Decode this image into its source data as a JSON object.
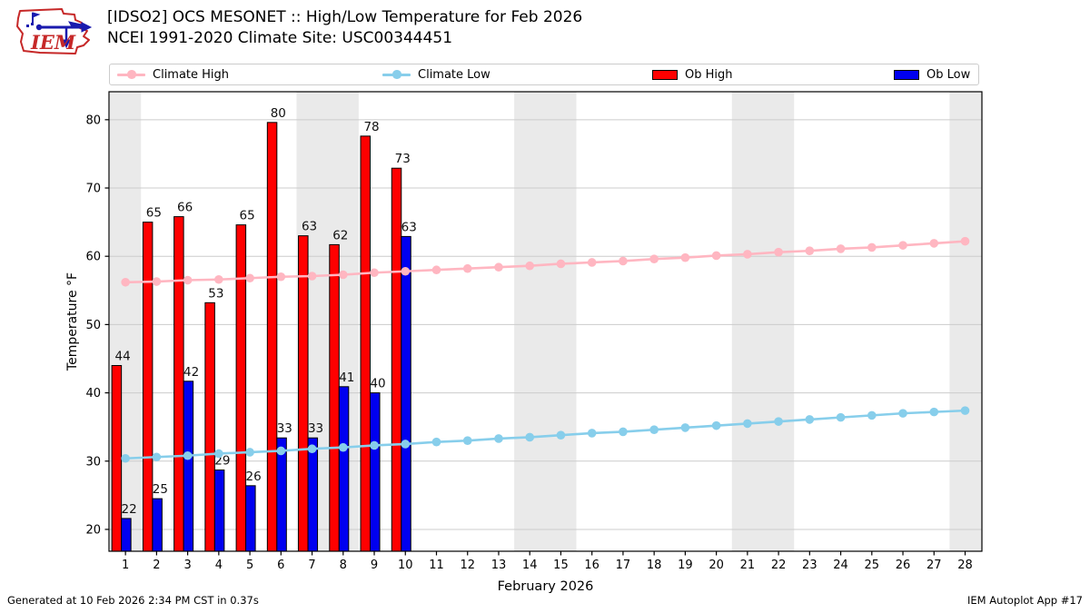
{
  "header": {
    "title_line1": "[IDSO2] OCS MESONET :: High/Low Temperature for Feb 2026",
    "title_line2": "NCEI 1991-2020 Climate Site: USC00344451",
    "logo_text": "IEM"
  },
  "legend": {
    "items": [
      {
        "label": "Climate High",
        "type": "line",
        "color": "#ffb6c1"
      },
      {
        "label": "Climate Low",
        "type": "line",
        "color": "#87ceeb"
      },
      {
        "label": "Ob High",
        "type": "patch",
        "color": "#ff0000"
      },
      {
        "label": "Ob Low",
        "type": "patch",
        "color": "#0000f0"
      }
    ]
  },
  "footer": {
    "left": "Generated at 10 Feb 2026 2:34 PM CST in 0.37s",
    "right": "IEM Autoplot App #17"
  },
  "chart_data": {
    "type": "bar",
    "title": "[IDSO2] OCS MESONET :: High/Low Temperature for Feb 2026",
    "subtitle": "NCEI 1991-2020 Climate Site: USC00344451",
    "xlabel": "February 2026",
    "ylabel": "Temperature °F",
    "xlim": [
      0.47,
      28.54
    ],
    "ylim": [
      16.8,
      84.1
    ],
    "yticks": [
      20,
      30,
      40,
      50,
      60,
      70,
      80
    ],
    "days": [
      1,
      2,
      3,
      4,
      5,
      6,
      7,
      8,
      9,
      10,
      11,
      12,
      13,
      14,
      15,
      16,
      17,
      18,
      19,
      20,
      21,
      22,
      23,
      24,
      25,
      26,
      27,
      28
    ],
    "weekend_shading": [
      [
        0.5,
        1.5
      ],
      [
        6.5,
        8.5
      ],
      [
        13.5,
        15.5
      ],
      [
        20.5,
        22.5
      ],
      [
        27.5,
        28.54
      ]
    ],
    "grid": "horizontal",
    "legend_position": "top",
    "series": [
      {
        "name": "Climate High",
        "type": "line",
        "color": "#ffb6c1",
        "x": [
          1,
          2,
          3,
          4,
          5,
          6,
          7,
          8,
          9,
          10,
          11,
          12,
          13,
          14,
          15,
          16,
          17,
          18,
          19,
          20,
          21,
          22,
          23,
          24,
          25,
          26,
          27,
          28
        ],
        "values": [
          56.2,
          56.3,
          56.5,
          56.6,
          56.8,
          57.0,
          57.1,
          57.3,
          57.6,
          57.8,
          58.0,
          58.2,
          58.4,
          58.6,
          58.9,
          59.1,
          59.3,
          59.6,
          59.8,
          60.1,
          60.3,
          60.6,
          60.8,
          61.1,
          61.3,
          61.6,
          61.9,
          62.2
        ]
      },
      {
        "name": "Climate Low",
        "type": "line",
        "color": "#87ceeb",
        "x": [
          1,
          2,
          3,
          4,
          5,
          6,
          7,
          8,
          9,
          10,
          11,
          12,
          13,
          14,
          15,
          16,
          17,
          18,
          19,
          20,
          21,
          22,
          23,
          24,
          25,
          26,
          27,
          28
        ],
        "values": [
          30.4,
          30.6,
          30.8,
          31.1,
          31.3,
          31.5,
          31.8,
          32.0,
          32.3,
          32.5,
          32.8,
          33.0,
          33.3,
          33.5,
          33.8,
          34.1,
          34.3,
          34.6,
          34.9,
          35.2,
          35.5,
          35.8,
          36.1,
          36.4,
          36.7,
          37.0,
          37.2,
          37.4
        ]
      },
      {
        "name": "Ob High",
        "type": "bar",
        "color": "#ff0000",
        "x": [
          1,
          2,
          3,
          4,
          5,
          6,
          7,
          8,
          9,
          10
        ],
        "values": [
          44.0,
          65.0,
          65.8,
          53.2,
          64.6,
          79.6,
          63.0,
          61.7,
          77.6,
          72.9
        ],
        "labels": [
          "44",
          "65",
          "66",
          "53",
          "65",
          "80",
          "63",
          "62",
          "78",
          "73"
        ]
      },
      {
        "name": "Ob Low",
        "type": "bar",
        "color": "#0000f0",
        "x": [
          1,
          2,
          3,
          4,
          5,
          6,
          7,
          8,
          9,
          10
        ],
        "values": [
          21.6,
          24.5,
          41.7,
          28.7,
          26.4,
          33.4,
          33.4,
          40.9,
          40.0,
          62.9
        ],
        "labels": [
          "22",
          "25",
          "42",
          "29",
          "26",
          "33",
          "33",
          "41",
          "40",
          "63"
        ]
      }
    ],
    "colors": {
      "weekend_band": "#eaeaea",
      "gridline": "#cccccc",
      "axis": "#000000",
      "label_text": "#111111"
    }
  }
}
